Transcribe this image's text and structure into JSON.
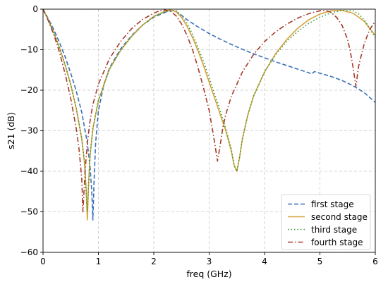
{
  "chart_data": {
    "type": "line",
    "title": "",
    "xlabel": "freq (GHz)",
    "ylabel": "s21 (dB)",
    "xlim": [
      0,
      6
    ],
    "ylim": [
      -60,
      0
    ],
    "xticks": [
      0,
      1,
      2,
      3,
      4,
      5,
      6
    ],
    "yticks": [
      0,
      -10,
      -20,
      -30,
      -40,
      -50,
      -60
    ],
    "grid": true,
    "legend_position": "lower-right",
    "series": [
      {
        "name": "first stage",
        "color": "#3a6fb7",
        "style": "dashed",
        "x": [
          0,
          0.1,
          0.2,
          0.3,
          0.4,
          0.5,
          0.6,
          0.7,
          0.8,
          0.85,
          0.88,
          0.9,
          0.92,
          0.95,
          1.0,
          1.1,
          1.2,
          1.4,
          1.6,
          1.8,
          2.0,
          2.2,
          2.3,
          2.4,
          2.5,
          2.6,
          2.8,
          3.0,
          3.2,
          3.4,
          3.6,
          3.8,
          4.0,
          4.2,
          4.4,
          4.6,
          4.8,
          4.85,
          4.9,
          5.0,
          5.2,
          5.4,
          5.6,
          5.8,
          6.0
        ],
        "y": [
          0,
          -2.5,
          -5.2,
          -8.3,
          -11.8,
          -15.8,
          -20.2,
          -25.5,
          -33.0,
          -39.0,
          -45.0,
          -52.0,
          -43.0,
          -33.0,
          -25.0,
          -18.5,
          -14.5,
          -9.8,
          -6.5,
          -3.9,
          -2.0,
          -0.8,
          -0.3,
          -0.6,
          -1.5,
          -2.6,
          -4.4,
          -6.0,
          -7.4,
          -8.7,
          -9.9,
          -11.0,
          -12.0,
          -13.0,
          -13.9,
          -14.8,
          -15.7,
          -16.0,
          -15.4,
          -15.8,
          -16.6,
          -17.6,
          -18.9,
          -20.6,
          -23.0
        ]
      },
      {
        "name": "second stage",
        "color": "#d6a23a",
        "style": "solid",
        "x": [
          0,
          0.1,
          0.2,
          0.3,
          0.4,
          0.5,
          0.6,
          0.7,
          0.75,
          0.78,
          0.8,
          0.82,
          0.85,
          0.9,
          1.0,
          1.2,
          1.4,
          1.6,
          1.8,
          2.0,
          2.2,
          2.3,
          2.4,
          2.5,
          2.6,
          2.7,
          2.8,
          2.9,
          3.0,
          3.1,
          3.2,
          3.3,
          3.4,
          3.45,
          3.5,
          3.55,
          3.6,
          3.7,
          3.8,
          4.0,
          4.2,
          4.4,
          4.6,
          4.8,
          5.0,
          5.2,
          5.4,
          5.6,
          5.8,
          6.0
        ],
        "y": [
          0,
          -2.8,
          -6.0,
          -9.6,
          -13.8,
          -18.6,
          -24.5,
          -32.0,
          -38.0,
          -45.0,
          -52.0,
          -44.0,
          -36.0,
          -29.5,
          -22.5,
          -14.8,
          -10.2,
          -6.7,
          -3.9,
          -1.8,
          -0.5,
          -0.2,
          -0.6,
          -2.0,
          -4.2,
          -7.0,
          -10.3,
          -14.0,
          -18.0,
          -22.0,
          -26.0,
          -30.0,
          -35.0,
          -38.5,
          -40.0,
          -36.5,
          -32.0,
          -26.0,
          -21.5,
          -15.5,
          -11.0,
          -7.5,
          -4.7,
          -2.6,
          -1.2,
          -0.4,
          -0.3,
          -1.0,
          -3.0,
          -6.5
        ]
      },
      {
        "name": "third stage",
        "color": "#3a9a3a",
        "style": "dotted",
        "x": [
          0,
          0.1,
          0.2,
          0.3,
          0.4,
          0.5,
          0.6,
          0.7,
          0.75,
          0.78,
          0.8,
          0.82,
          0.85,
          0.9,
          1.0,
          1.2,
          1.4,
          1.6,
          1.8,
          2.0,
          2.2,
          2.4,
          2.5,
          2.6,
          2.7,
          2.8,
          2.9,
          3.0,
          3.1,
          3.2,
          3.3,
          3.4,
          3.45,
          3.5,
          3.55,
          3.6,
          3.7,
          3.8,
          4.0,
          4.2,
          4.4,
          4.6,
          4.8,
          5.0,
          5.2,
          5.4,
          5.6,
          5.7,
          5.8,
          5.9,
          6.0
        ],
        "y": [
          0,
          -2.8,
          -6.0,
          -9.6,
          -13.8,
          -18.6,
          -24.5,
          -32.0,
          -38.0,
          -45.0,
          -50.0,
          -44.0,
          -36.0,
          -29.5,
          -22.5,
          -14.8,
          -10.2,
          -6.7,
          -3.9,
          -1.8,
          -0.6,
          -0.3,
          -1.5,
          -3.5,
          -6.2,
          -9.5,
          -13.0,
          -17.0,
          -21.0,
          -25.0,
          -29.5,
          -34.5,
          -38.5,
          -40.0,
          -36.5,
          -32.0,
          -26.0,
          -21.5,
          -15.5,
          -11.2,
          -8.0,
          -5.5,
          -3.5,
          -2.0,
          -0.9,
          -0.3,
          -0.4,
          -1.2,
          -2.6,
          -4.8,
          -7.0
        ]
      },
      {
        "name": "fourth stage",
        "color": "#a83a2a",
        "style": "dashdot",
        "x": [
          0,
          0.1,
          0.2,
          0.3,
          0.4,
          0.5,
          0.6,
          0.65,
          0.7,
          0.72,
          0.74,
          0.76,
          0.8,
          0.85,
          0.9,
          1.0,
          1.2,
          1.4,
          1.6,
          1.8,
          2.0,
          2.1,
          2.2,
          2.3,
          2.4,
          2.5,
          2.6,
          2.7,
          2.8,
          2.9,
          3.0,
          3.05,
          3.1,
          3.15,
          3.2,
          3.25,
          3.3,
          3.4,
          3.6,
          3.8,
          4.0,
          4.2,
          4.4,
          4.6,
          4.8,
          5.0,
          5.1,
          5.2,
          5.3,
          5.4,
          5.5,
          5.55,
          5.6,
          5.65,
          5.7,
          5.8,
          5.9,
          6.0
        ],
        "y": [
          0,
          -3.0,
          -6.5,
          -10.8,
          -16.0,
          -22.0,
          -29.5,
          -34.5,
          -42.0,
          -50.0,
          -45.0,
          -40.0,
          -33.0,
          -27.5,
          -23.5,
          -18.5,
          -12.2,
          -8.0,
          -4.8,
          -2.5,
          -1.0,
          -0.4,
          -0.2,
          -0.5,
          -1.6,
          -3.6,
          -6.5,
          -10.0,
          -14.5,
          -19.5,
          -25.0,
          -29.0,
          -33.0,
          -37.5,
          -33.5,
          -29.0,
          -26.0,
          -21.5,
          -15.5,
          -11.2,
          -8.0,
          -5.6,
          -3.7,
          -2.2,
          -1.1,
          -0.4,
          -0.3,
          -0.8,
          -2.0,
          -4.0,
          -7.5,
          -10.5,
          -14.5,
          -19.0,
          -14.0,
          -8.5,
          -5.0,
          -3.0
        ]
      }
    ]
  }
}
